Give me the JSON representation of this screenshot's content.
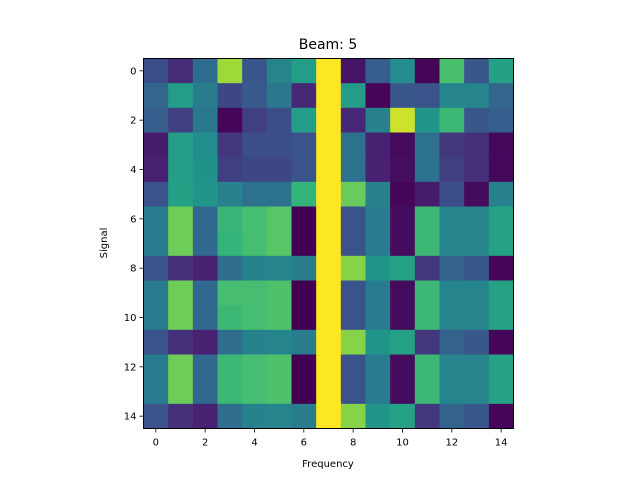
{
  "chart_data": {
    "type": "heatmap",
    "title": "Beam: 5",
    "xlabel": "Frequency",
    "ylabel": "Signal",
    "x_ticks": [
      "0",
      "2",
      "4",
      "6",
      "8",
      "10",
      "12",
      "14"
    ],
    "y_ticks": [
      "0",
      "2",
      "4",
      "6",
      "8",
      "10",
      "12",
      "14"
    ],
    "xlim": [
      -0.5,
      14.5
    ],
    "ylim": [
      14.5,
      -0.5
    ],
    "colormap": "viridis",
    "value_range": [
      0,
      1
    ],
    "grid": false,
    "colorbar": false,
    "values": [
      [
        0.24,
        0.15,
        0.36,
        0.86,
        0.27,
        0.45,
        0.55,
        1.0,
        0.07,
        0.3,
        0.48,
        0.02,
        0.71,
        0.27,
        0.57
      ],
      [
        0.33,
        0.55,
        0.42,
        0.22,
        0.28,
        0.4,
        0.14,
        1.0,
        0.55,
        0.02,
        0.27,
        0.26,
        0.45,
        0.45,
        0.33
      ],
      [
        0.3,
        0.2,
        0.4,
        0.02,
        0.2,
        0.24,
        0.55,
        1.0,
        0.14,
        0.44,
        0.93,
        0.52,
        0.68,
        0.27,
        0.3
      ],
      [
        0.1,
        0.56,
        0.48,
        0.18,
        0.24,
        0.24,
        0.26,
        1.0,
        0.38,
        0.12,
        0.04,
        0.38,
        0.18,
        0.16,
        0.03
      ],
      [
        0.12,
        0.56,
        0.5,
        0.2,
        0.22,
        0.22,
        0.26,
        1.0,
        0.38,
        0.12,
        0.05,
        0.38,
        0.2,
        0.16,
        0.03
      ],
      [
        0.26,
        0.57,
        0.52,
        0.44,
        0.38,
        0.38,
        0.66,
        1.0,
        0.77,
        0.44,
        0.02,
        0.1,
        0.24,
        0.04,
        0.44
      ],
      [
        0.42,
        0.78,
        0.34,
        0.67,
        0.7,
        0.74,
        0.0,
        1.0,
        0.26,
        0.42,
        0.04,
        0.68,
        0.45,
        0.45,
        0.58
      ],
      [
        0.42,
        0.78,
        0.34,
        0.66,
        0.7,
        0.74,
        0.0,
        1.0,
        0.26,
        0.42,
        0.04,
        0.68,
        0.45,
        0.45,
        0.58
      ],
      [
        0.26,
        0.16,
        0.12,
        0.36,
        0.44,
        0.45,
        0.42,
        1.0,
        0.82,
        0.52,
        0.58,
        0.18,
        0.32,
        0.27,
        0.02
      ],
      [
        0.42,
        0.78,
        0.34,
        0.7,
        0.7,
        0.72,
        0.0,
        1.0,
        0.26,
        0.42,
        0.04,
        0.68,
        0.45,
        0.45,
        0.58
      ],
      [
        0.42,
        0.78,
        0.34,
        0.68,
        0.7,
        0.72,
        0.0,
        1.0,
        0.26,
        0.42,
        0.04,
        0.68,
        0.45,
        0.45,
        0.58
      ],
      [
        0.26,
        0.16,
        0.12,
        0.36,
        0.44,
        0.45,
        0.42,
        1.0,
        0.82,
        0.52,
        0.58,
        0.18,
        0.32,
        0.27,
        0.02
      ],
      [
        0.42,
        0.78,
        0.34,
        0.68,
        0.7,
        0.72,
        0.0,
        1.0,
        0.26,
        0.42,
        0.04,
        0.68,
        0.45,
        0.45,
        0.58
      ],
      [
        0.42,
        0.78,
        0.34,
        0.68,
        0.7,
        0.72,
        0.0,
        1.0,
        0.26,
        0.42,
        0.04,
        0.68,
        0.45,
        0.45,
        0.58
      ],
      [
        0.26,
        0.16,
        0.12,
        0.36,
        0.44,
        0.45,
        0.42,
        1.0,
        0.82,
        0.52,
        0.58,
        0.18,
        0.32,
        0.27,
        0.02
      ]
    ]
  }
}
